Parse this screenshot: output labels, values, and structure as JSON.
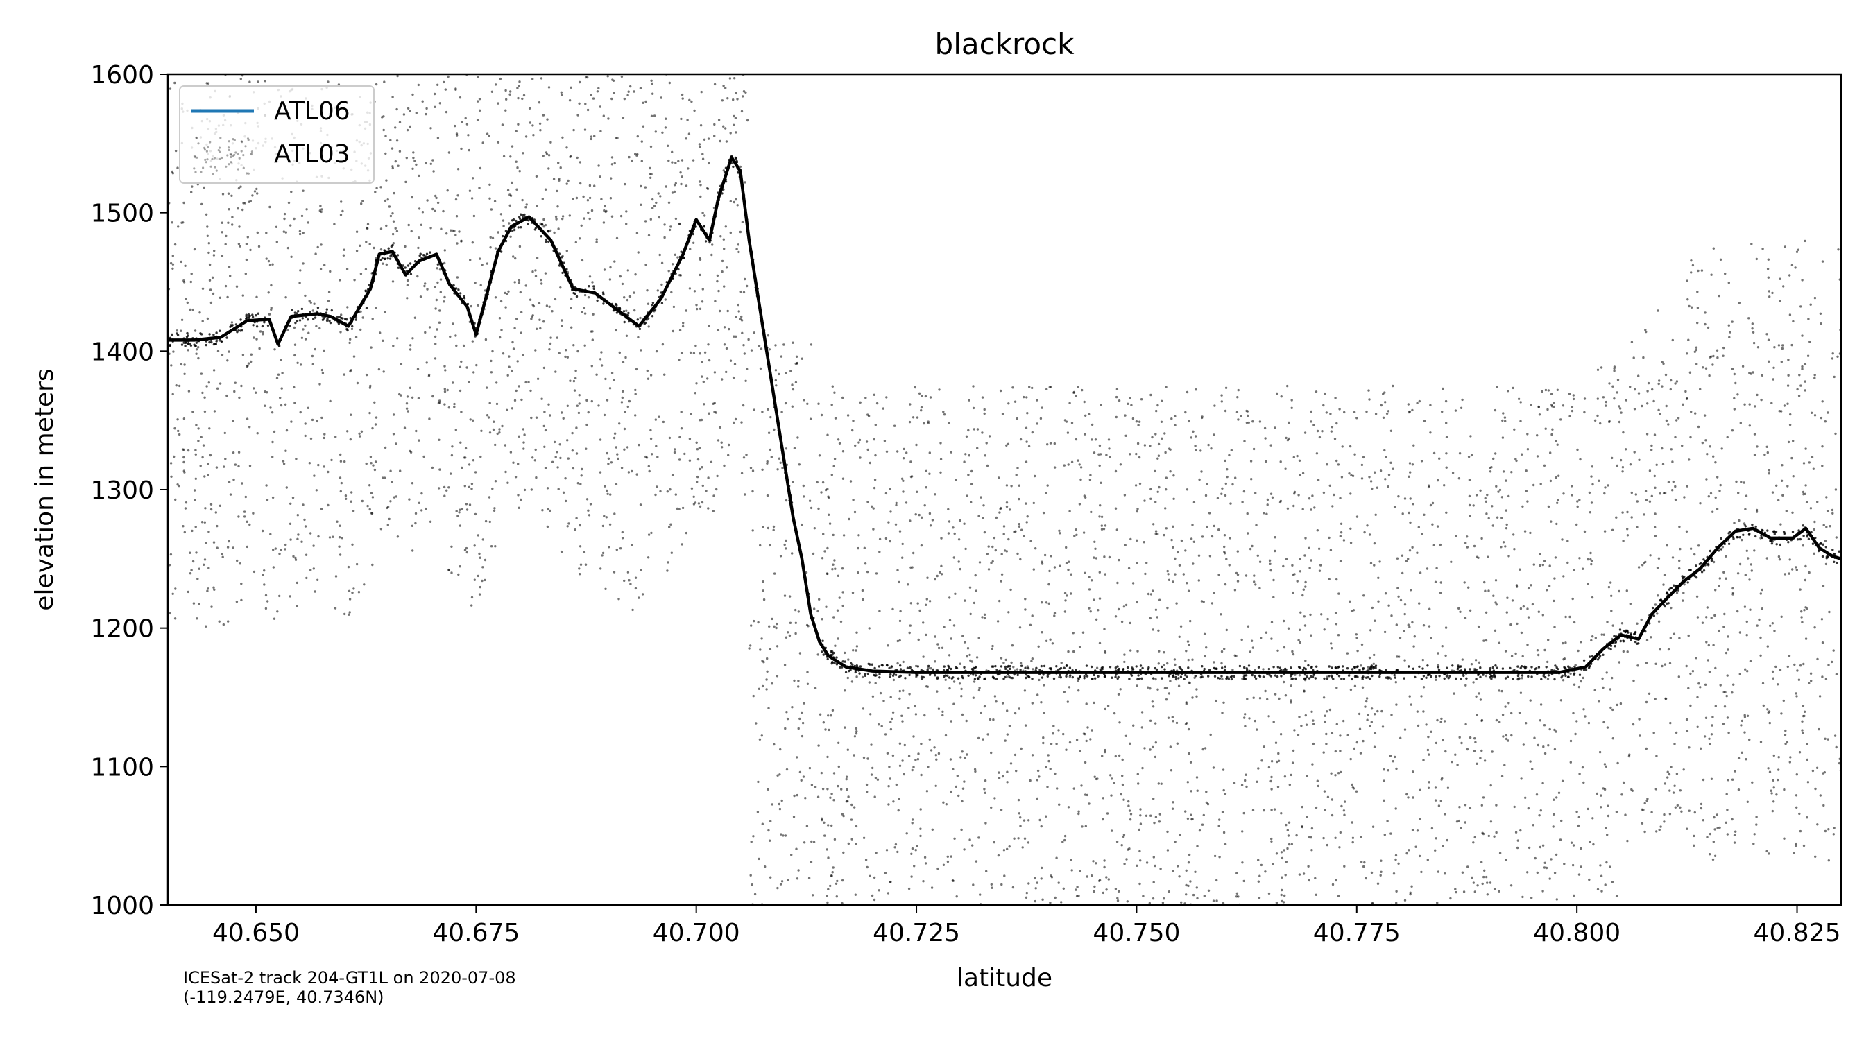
{
  "chart_data": {
    "type": "scatter",
    "title": "blackrock",
    "xlabel": "latitude",
    "ylabel": "elevation in meters",
    "xlim": [
      40.64,
      40.83
    ],
    "ylim": [
      1000,
      1600
    ],
    "x_ticks": [
      40.65,
      40.675,
      40.7,
      40.725,
      40.75,
      40.775,
      40.8,
      40.825
    ],
    "x_tick_labels": [
      "40.650",
      "40.675",
      "40.700",
      "40.725",
      "40.750",
      "40.775",
      "40.800",
      "40.825"
    ],
    "y_ticks": [
      1000,
      1100,
      1200,
      1300,
      1400,
      1500,
      1600
    ],
    "y_tick_labels": [
      "1000",
      "1100",
      "1200",
      "1300",
      "1400",
      "1500",
      "1600"
    ],
    "grid": false,
    "legend_placement": "top-left",
    "series": [
      {
        "name": "ATL06",
        "kind": "line",
        "color": "#000000",
        "legend_color": "#1f77b4",
        "x": [
          40.64,
          40.643,
          40.646,
          40.649,
          40.6515,
          40.6525,
          40.654,
          40.657,
          40.6585,
          40.6605,
          40.663,
          40.664,
          40.6655,
          40.667,
          40.6685,
          40.6705,
          40.672,
          40.674,
          40.675,
          40.6775,
          40.679,
          40.681,
          40.6835,
          40.686,
          40.6885,
          40.691,
          40.6935,
          40.696,
          40.6985,
          40.7,
          40.7015,
          40.7025,
          40.704,
          40.705,
          40.706,
          40.707,
          40.708,
          40.709,
          40.71,
          40.711,
          40.712,
          40.713,
          40.714,
          40.715,
          40.717,
          40.72,
          40.725,
          40.73,
          40.74,
          40.75,
          40.76,
          40.77,
          40.78,
          40.79,
          40.798,
          40.801,
          40.803,
          40.805,
          40.807,
          40.8085,
          40.81,
          40.812,
          40.814,
          40.816,
          40.818,
          40.82,
          40.822,
          40.8245,
          40.826,
          40.8275,
          40.829,
          40.83
        ],
        "y": [
          1408,
          1408,
          1410,
          1422,
          1423,
          1405,
          1425,
          1427,
          1425,
          1418,
          1445,
          1470,
          1472,
          1455,
          1465,
          1470,
          1448,
          1432,
          1412,
          1472,
          1490,
          1497,
          1480,
          1445,
          1442,
          1430,
          1418,
          1438,
          1470,
          1495,
          1480,
          1510,
          1540,
          1530,
          1480,
          1440,
          1400,
          1360,
          1320,
          1280,
          1250,
          1210,
          1190,
          1180,
          1172,
          1169,
          1168,
          1168,
          1168,
          1168,
          1168,
          1168,
          1168,
          1168,
          1168,
          1172,
          1185,
          1195,
          1192,
          1210,
          1220,
          1233,
          1243,
          1258,
          1270,
          1272,
          1265,
          1265,
          1272,
          1258,
          1252,
          1250
        ]
      },
      {
        "name": "ATL03",
        "kind": "points",
        "color": "#000000"
      }
    ]
  },
  "legend": {
    "atl06_label": "ATL06",
    "atl03_label": "ATL03"
  },
  "caption": {
    "line1": "ICESat-2 track 204-GT1L on 2020-07-08",
    "line2": "(-119.2479E, 40.7346N)"
  }
}
